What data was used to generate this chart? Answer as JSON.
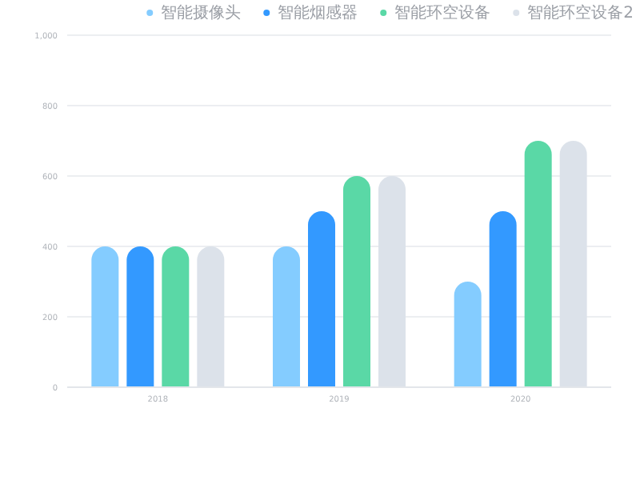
{
  "chart_data": {
    "type": "bar",
    "categories": [
      "2018",
      "2019",
      "2020"
    ],
    "series": [
      {
        "name": "智能摄像头",
        "color": "#84ccff",
        "values": [
          400,
          400,
          300
        ]
      },
      {
        "name": "智能烟感器",
        "color": "#3399ff",
        "values": [
          400,
          500,
          500
        ]
      },
      {
        "name": "智能环空设备",
        "color": "#5ad8a6",
        "values": [
          400,
          600,
          700
        ]
      },
      {
        "name": "智能环空设备2",
        "color": "#dce2ea",
        "values": [
          400,
          600,
          700
        ]
      }
    ],
    "ylim": [
      0,
      1000
    ],
    "yticks": [
      0,
      200,
      400,
      600,
      800,
      {
        "value": 1000,
        "label": "1,000"
      }
    ],
    "grid": "y",
    "legend": "top right"
  }
}
